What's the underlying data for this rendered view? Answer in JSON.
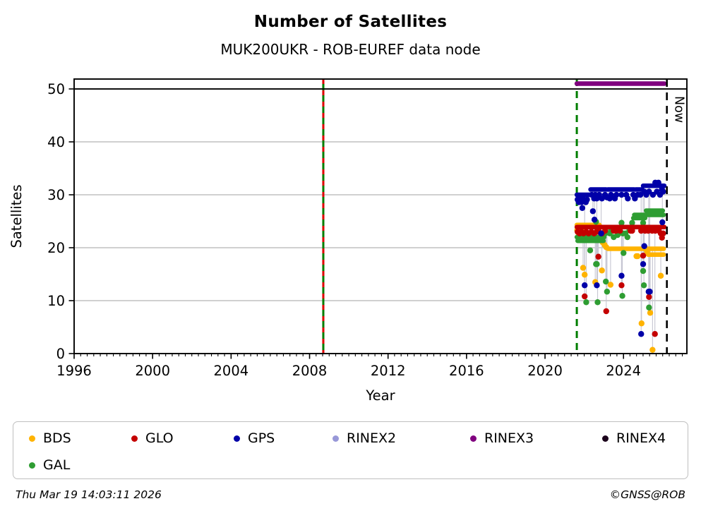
{
  "footer": {
    "timestamp": "Thu Mar 19 14:03:11 2026",
    "credit": "©GNSS@ROB"
  },
  "legend": {
    "items": [
      {
        "label": "BDS",
        "color": "#FFB300"
      },
      {
        "label": "GLO",
        "color": "#C40000"
      },
      {
        "label": "GPS",
        "color": "#0000A8"
      },
      {
        "label": "RINEX2",
        "color": "#9898D8"
      },
      {
        "label": "RINEX3",
        "color": "#80007F"
      },
      {
        "label": "RINEX4",
        "color": "#1B021B"
      },
      {
        "label": "GAL",
        "color": "#2E9D32"
      }
    ]
  },
  "chart_data": {
    "type": "scatter",
    "title": "Number of Satellites",
    "subtitle": "MUK200UKR - ROB-EUREF data node",
    "xlabel": "Year",
    "ylabel": "Satellites",
    "xlim": [
      1996,
      2027.23
    ],
    "ylim": [
      0,
      51.87
    ],
    "x_ticks": [
      1996,
      2000,
      2004,
      2008,
      2012,
      2016,
      2020,
      2024
    ],
    "x_minor_step_years": 0.3333,
    "y_ticks": [
      0,
      10,
      20,
      30,
      40,
      50
    ],
    "grid": true,
    "grid_color": "#B3B3B3",
    "black_hline_y": 50,
    "connector_color": "#C6C6D2",
    "legend_position": "bottom",
    "now_marker": {
      "year": 2026.21,
      "label": "Now",
      "color": "#000000",
      "style": "dashed"
    },
    "event_lines": [
      {
        "year": 2008.7,
        "colors": [
          "#007D00",
          "#E00000"
        ],
        "style": "green-solid-red-dashed"
      },
      {
        "year": 2021.62,
        "colors": [
          "#007D00"
        ],
        "style": "dashed"
      }
    ],
    "series": [
      {
        "name": "BDS",
        "color": "#FFB300",
        "segments": [
          [
            2021.62,
            2022.78,
            24.3
          ],
          [
            2023.2,
            2026.05,
            19.8
          ],
          [
            2025.25,
            2026.05,
            18.7
          ]
        ],
        "dots": [
          [
            2021.64,
            23.3
          ],
          [
            2021.7,
            22.8
          ],
          [
            2021.78,
            23.3
          ],
          [
            2021.96,
            23.3
          ],
          [
            2022.84,
            22
          ],
          [
            2022.94,
            21
          ],
          [
            2023.04,
            20.5
          ],
          [
            2023.12,
            20.1
          ],
          [
            2024.66,
            18.4
          ],
          [
            2024.72,
            18.4
          ],
          [
            2025.2,
            19.3
          ]
        ],
        "outliers": [
          [
            2021.94,
            16.2
          ],
          [
            2022.02,
            14.9
          ],
          [
            2022.56,
            13.5
          ],
          [
            2022.9,
            15.7,
            21
          ],
          [
            2023.34,
            13
          ],
          [
            2024.92,
            5.7
          ],
          [
            2025.36,
            7.7
          ],
          [
            2025.48,
            0.7
          ],
          [
            2025.9,
            14.7
          ]
        ]
      },
      {
        "name": "GAL",
        "color": "#2E9D32",
        "segments": [
          [
            2021.62,
            2023.02,
            22
          ],
          [
            2021.66,
            2022.98,
            21.3
          ],
          [
            2024.5,
            2025.1,
            25.6
          ],
          [
            2024.55,
            2026.05,
            26.2
          ],
          [
            2025.15,
            2026.0,
            27
          ]
        ],
        "dots": [
          [
            2022.2,
            21.9
          ],
          [
            2022.3,
            19.5
          ],
          [
            2022.6,
            24.9
          ],
          [
            2023.06,
            22.7
          ],
          [
            2023.3,
            22.7
          ],
          [
            2023.36,
            23.3
          ],
          [
            2023.5,
            22
          ],
          [
            2023.56,
            23.3
          ],
          [
            2023.7,
            22.4
          ],
          [
            2023.9,
            24.7
          ],
          [
            2023.96,
            22.7
          ],
          [
            2024.1,
            22.7
          ],
          [
            2024.2,
            22
          ],
          [
            2024.3,
            23.3
          ],
          [
            2024.44,
            24.7
          ],
          [
            2025.0,
            24.7
          ]
        ],
        "outliers": [
          [
            2022.1,
            9.7
          ],
          [
            2022.6,
            16.9
          ],
          [
            2022.64,
            16.9
          ],
          [
            2022.68,
            9.7
          ],
          [
            2023.1,
            13.6,
            22.7
          ],
          [
            2023.16,
            11.7,
            22.7
          ],
          [
            2023.94,
            10.9,
            24.7
          ],
          [
            2024.0,
            19,
            22.7
          ],
          [
            2025.0,
            15.6
          ],
          [
            2025.04,
            12.9
          ],
          [
            2025.3,
            8.7
          ]
        ]
      },
      {
        "name": "GLO",
        "color": "#C40000",
        "segments": [
          [
            2021.62,
            2026.08,
            23.9
          ]
        ],
        "dots": [
          [
            2021.66,
            23
          ],
          [
            2021.76,
            22.7
          ],
          [
            2021.86,
            23
          ],
          [
            2021.96,
            22.7
          ],
          [
            2022.1,
            23
          ],
          [
            2022.22,
            22.7
          ],
          [
            2022.36,
            23
          ],
          [
            2022.5,
            22.7
          ],
          [
            2022.62,
            23
          ],
          [
            2022.76,
            23
          ],
          [
            2022.9,
            22.7
          ],
          [
            2023.06,
            23.2
          ],
          [
            2023.5,
            23.2
          ],
          [
            2023.62,
            23.2
          ],
          [
            2023.82,
            23.2
          ],
          [
            2024.36,
            23.2
          ],
          [
            2024.44,
            23.2
          ],
          [
            2024.9,
            23.2
          ],
          [
            2025.1,
            23.2
          ],
          [
            2025.26,
            23.2
          ],
          [
            2025.46,
            23.2
          ],
          [
            2025.62,
            23.2
          ],
          [
            2025.8,
            23.2
          ],
          [
            2025.9,
            22.7
          ],
          [
            2025.96,
            21.9
          ],
          [
            2026.02,
            22.7
          ]
        ],
        "outliers": [
          [
            2022.02,
            10.8
          ],
          [
            2022.72,
            18.3
          ],
          [
            2023.12,
            8
          ],
          [
            2023.9,
            12.9
          ],
          [
            2025.0,
            18.5
          ],
          [
            2025.3,
            10.7
          ],
          [
            2025.6,
            3.7
          ]
        ]
      },
      {
        "name": "GPS",
        "color": "#0000A8",
        "segments": [
          [
            2021.62,
            2022.32,
            30
          ],
          [
            2022.32,
            2023.12,
            31
          ],
          [
            2023.2,
            2024.55,
            31
          ],
          [
            2024.62,
            2024.95,
            31
          ],
          [
            2025.0,
            2026.08,
            31.7
          ]
        ],
        "dots": [
          [
            2021.66,
            29.1
          ],
          [
            2021.72,
            28.6
          ],
          [
            2021.78,
            29.3
          ],
          [
            2021.86,
            28.6
          ],
          [
            2021.92,
            29.3
          ],
          [
            2022.0,
            29
          ],
          [
            2022.08,
            28.6
          ],
          [
            2022.14,
            29.1
          ],
          [
            2022.38,
            30
          ],
          [
            2022.5,
            29.3
          ],
          [
            2022.56,
            30
          ],
          [
            2022.64,
            29.3
          ],
          [
            2022.76,
            30
          ],
          [
            2022.9,
            29.3
          ],
          [
            2023.06,
            30
          ],
          [
            2023.16,
            29.5
          ],
          [
            2023.3,
            29.3
          ],
          [
            2023.36,
            30
          ],
          [
            2023.56,
            29.3
          ],
          [
            2023.64,
            30
          ],
          [
            2023.9,
            30
          ],
          [
            2024.14,
            30
          ],
          [
            2024.22,
            29.3
          ],
          [
            2024.5,
            30
          ],
          [
            2024.58,
            29.3
          ],
          [
            2024.72,
            30
          ],
          [
            2024.86,
            30
          ],
          [
            2025.06,
            30.6
          ],
          [
            2025.16,
            30
          ],
          [
            2025.3,
            30.6
          ],
          [
            2025.5,
            30
          ],
          [
            2025.62,
            32.3
          ],
          [
            2025.7,
            30.6
          ],
          [
            2025.78,
            32.3
          ],
          [
            2025.86,
            30
          ],
          [
            2025.96,
            31
          ],
          [
            2026.02,
            30.6
          ]
        ],
        "outliers": [
          [
            2021.9,
            27.5
          ],
          [
            2022.02,
            12.9
          ],
          [
            2022.44,
            26.9
          ],
          [
            2022.52,
            25.3
          ],
          [
            2022.64,
            12.9
          ],
          [
            2022.86,
            22.7
          ],
          [
            2023.9,
            14.7
          ],
          [
            2024.9,
            3.7
          ],
          [
            2025.0,
            16.9
          ],
          [
            2025.06,
            20.3
          ],
          [
            2025.28,
            11.7
          ],
          [
            2025.34,
            11.7
          ],
          [
            2025.98,
            24.8
          ]
        ]
      },
      {
        "name": "RINEX2",
        "color": "#9898D8",
        "segments": [],
        "dots": [],
        "outliers": []
      },
      {
        "name": "RINEX3",
        "color": "#80007F",
        "segments": [
          [
            2021.62,
            2026.08,
            51
          ]
        ],
        "dots": [],
        "outliers": []
      },
      {
        "name": "RINEX4",
        "color": "#1B021B",
        "segments": [],
        "dots": [],
        "outliers": []
      }
    ]
  }
}
